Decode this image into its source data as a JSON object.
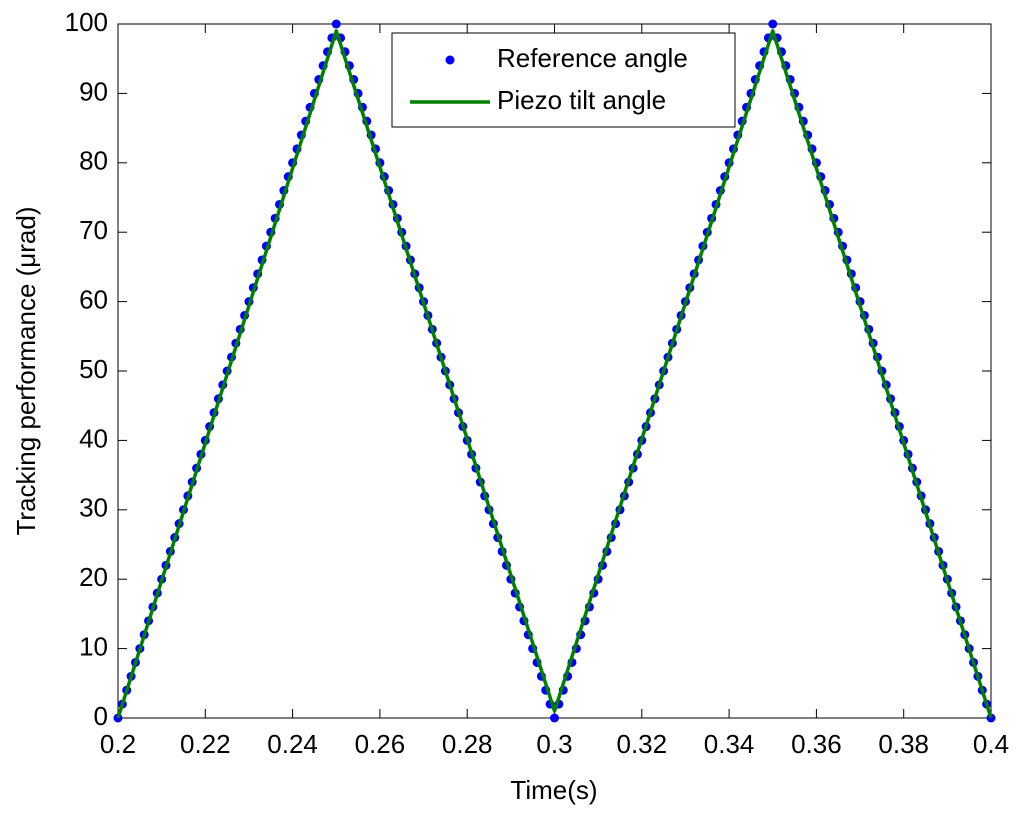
{
  "chart_data": {
    "type": "line",
    "xlabel": "Time(s)",
    "ylabel": "Tracking performance (μrad)",
    "xlim": [
      0.2,
      0.4
    ],
    "xticks": [
      0.2,
      0.22,
      0.24,
      0.26,
      0.28,
      0.3,
      0.32,
      0.34,
      0.36,
      0.38,
      0.4
    ],
    "ylim": [
      0,
      100
    ],
    "yticks": [
      0,
      10,
      20,
      30,
      40,
      50,
      60,
      70,
      80,
      90,
      100
    ],
    "grid": false,
    "legend": "upper center",
    "series": [
      {
        "name": "Reference angle",
        "color": "#0000ff",
        "style": "dots",
        "x": [
          0.2,
          0.201,
          0.202,
          0.203,
          0.204,
          0.205,
          0.206,
          0.207,
          0.208,
          0.209,
          0.21,
          0.211,
          0.212,
          0.213,
          0.214,
          0.215,
          0.216,
          0.217,
          0.218,
          0.219,
          0.22,
          0.221,
          0.222,
          0.223,
          0.224,
          0.225,
          0.226,
          0.227,
          0.228,
          0.229,
          0.23,
          0.231,
          0.232,
          0.233,
          0.234,
          0.235,
          0.236,
          0.237,
          0.238,
          0.239,
          0.24,
          0.241,
          0.242,
          0.243,
          0.244,
          0.245,
          0.246,
          0.247,
          0.248,
          0.249,
          0.25,
          0.251,
          0.252,
          0.253,
          0.254,
          0.255,
          0.256,
          0.257,
          0.258,
          0.259,
          0.26,
          0.261,
          0.262,
          0.263,
          0.264,
          0.265,
          0.266,
          0.267,
          0.268,
          0.269,
          0.27,
          0.271,
          0.272,
          0.273,
          0.274,
          0.275,
          0.276,
          0.277,
          0.278,
          0.279,
          0.28,
          0.281,
          0.282,
          0.283,
          0.284,
          0.285,
          0.286,
          0.287,
          0.288,
          0.289,
          0.29,
          0.291,
          0.292,
          0.293,
          0.294,
          0.295,
          0.296,
          0.297,
          0.298,
          0.299,
          0.3,
          0.301,
          0.302,
          0.303,
          0.304,
          0.305,
          0.306,
          0.307,
          0.308,
          0.309,
          0.31,
          0.311,
          0.312,
          0.313,
          0.314,
          0.315,
          0.316,
          0.317,
          0.318,
          0.319,
          0.32,
          0.321,
          0.322,
          0.323,
          0.324,
          0.325,
          0.326,
          0.327,
          0.328,
          0.329,
          0.33,
          0.331,
          0.332,
          0.333,
          0.334,
          0.335,
          0.336,
          0.337,
          0.338,
          0.339,
          0.34,
          0.341,
          0.342,
          0.343,
          0.344,
          0.345,
          0.346,
          0.347,
          0.348,
          0.349,
          0.35,
          0.351,
          0.352,
          0.353,
          0.354,
          0.355,
          0.356,
          0.357,
          0.358,
          0.359,
          0.36,
          0.361,
          0.362,
          0.363,
          0.364,
          0.365,
          0.366,
          0.367,
          0.368,
          0.369,
          0.37,
          0.371,
          0.372,
          0.373,
          0.374,
          0.375,
          0.376,
          0.377,
          0.378,
          0.379,
          0.38,
          0.381,
          0.382,
          0.383,
          0.384,
          0.385,
          0.386,
          0.387,
          0.388,
          0.389,
          0.39,
          0.391,
          0.392,
          0.393,
          0.394,
          0.395,
          0.396,
          0.397,
          0.398,
          0.399,
          0.4
        ],
        "values": [
          0,
          2,
          4,
          6,
          8,
          10,
          12,
          14,
          16,
          18,
          20,
          22,
          24,
          26,
          28,
          30,
          32,
          34,
          36,
          38,
          40,
          42,
          44,
          46,
          48,
          50,
          52,
          54,
          56,
          58,
          60,
          62,
          64,
          66,
          68,
          70,
          72,
          74,
          76,
          78,
          80,
          82,
          84,
          86,
          88,
          90,
          92,
          94,
          96,
          98,
          100,
          98,
          96,
          94,
          92,
          90,
          88,
          86,
          84,
          82,
          80,
          78,
          76,
          74,
          72,
          70,
          68,
          66,
          64,
          62,
          60,
          58,
          56,
          54,
          52,
          50,
          48,
          46,
          44,
          42,
          40,
          38,
          36,
          34,
          32,
          30,
          28,
          26,
          24,
          22,
          20,
          18,
          16,
          14,
          12,
          10,
          8,
          6,
          4,
          2,
          0,
          2,
          4,
          6,
          8,
          10,
          12,
          14,
          16,
          18,
          20,
          22,
          24,
          26,
          28,
          30,
          32,
          34,
          36,
          38,
          40,
          42,
          44,
          46,
          48,
          50,
          52,
          54,
          56,
          58,
          60,
          62,
          64,
          66,
          68,
          70,
          72,
          74,
          76,
          78,
          80,
          82,
          84,
          86,
          88,
          90,
          92,
          94,
          96,
          98,
          100,
          98,
          96,
          94,
          92,
          90,
          88,
          86,
          84,
          82,
          80,
          78,
          76,
          74,
          72,
          70,
          68,
          66,
          64,
          62,
          60,
          58,
          56,
          54,
          52,
          50,
          48,
          46,
          44,
          42,
          40,
          38,
          36,
          34,
          32,
          30,
          28,
          26,
          24,
          22,
          20,
          18,
          16,
          14,
          12,
          10,
          8,
          6,
          4,
          2,
          0
        ]
      },
      {
        "name": "Piezo tilt angle",
        "color": "#008000",
        "style": "line",
        "x": [
          0.2,
          0.25,
          0.3,
          0.35,
          0.4
        ],
        "values": [
          0,
          99,
          1,
          99,
          0
        ]
      }
    ]
  }
}
